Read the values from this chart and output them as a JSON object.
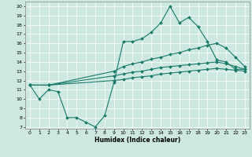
{
  "xlabel": "Humidex (Indice chaleur)",
  "xlim": [
    -0.5,
    23.5
  ],
  "ylim": [
    6.8,
    20.5
  ],
  "yticks": [
    7,
    8,
    9,
    10,
    11,
    12,
    13,
    14,
    15,
    16,
    17,
    18,
    19,
    20
  ],
  "xticks": [
    0,
    1,
    2,
    3,
    4,
    5,
    6,
    7,
    8,
    9,
    10,
    11,
    12,
    13,
    14,
    15,
    16,
    17,
    18,
    19,
    20,
    21,
    22,
    23
  ],
  "bg_color": "#cce8e0",
  "line_color": "#1a7a6a",
  "line1_x": [
    0,
    1,
    2,
    3,
    4,
    5,
    6,
    7,
    8,
    9,
    10,
    11,
    12,
    13,
    14,
    15,
    16,
    17,
    18,
    19,
    20,
    21,
    22,
    23
  ],
  "line1_y": [
    11.5,
    10.0,
    11.0,
    10.8,
    8.0,
    8.0,
    7.5,
    7.0,
    8.2,
    11.8,
    16.2,
    16.2,
    16.5,
    17.2,
    18.2,
    20.0,
    18.2,
    18.8,
    17.8,
    16.2,
    14.2,
    14.0,
    13.2,
    13.2
  ],
  "line2_x": [
    0,
    2,
    9,
    10,
    11,
    12,
    13,
    14,
    15,
    16,
    17,
    18,
    19,
    20,
    21,
    22,
    23
  ],
  "line2_y": [
    11.5,
    11.5,
    13.0,
    13.5,
    13.8,
    14.0,
    14.3,
    14.5,
    14.8,
    15.0,
    15.3,
    15.5,
    15.8,
    16.0,
    15.5,
    14.5,
    13.5
  ],
  "line3_x": [
    0,
    2,
    9,
    10,
    11,
    12,
    13,
    14,
    15,
    16,
    17,
    18,
    19,
    20,
    21,
    22,
    23
  ],
  "line3_y": [
    11.5,
    11.5,
    12.5,
    12.7,
    12.9,
    13.0,
    13.2,
    13.4,
    13.5,
    13.6,
    13.7,
    13.8,
    13.9,
    14.0,
    13.8,
    13.5,
    13.2
  ],
  "line4_x": [
    0,
    2,
    9,
    10,
    11,
    12,
    13,
    14,
    15,
    16,
    17,
    18,
    19,
    20,
    21,
    22,
    23
  ],
  "line4_y": [
    11.5,
    11.5,
    12.0,
    12.1,
    12.3,
    12.4,
    12.5,
    12.7,
    12.8,
    12.9,
    13.0,
    13.1,
    13.2,
    13.3,
    13.2,
    13.1,
    13.0
  ],
  "tick_fontsize": 4.5,
  "xlabel_fontsize": 5.5,
  "grid_color": "#ffffff",
  "linewidth": 0.8,
  "markersize": 2.0
}
